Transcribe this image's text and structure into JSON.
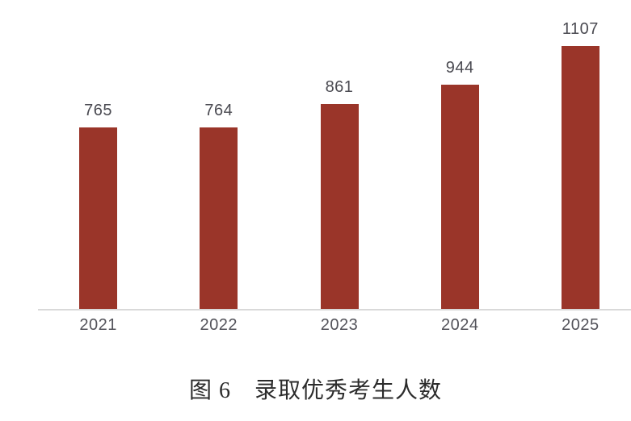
{
  "chart_data": {
    "type": "bar",
    "title": "图 6　录取优秀考生人数",
    "categories": [
      "2021",
      "2022",
      "2023",
      "2024",
      "2025"
    ],
    "values": [
      765,
      764,
      861,
      944,
      1107
    ],
    "xlabel": "",
    "ylabel": "",
    "ylim": [
      0,
      1200
    ],
    "data_labels": true,
    "grid": false,
    "legend": false,
    "axis": "x-axis baseline only, no ticks, no y-axis"
  },
  "colors": {
    "background": "#FFFFFF",
    "bar": "#9A3529",
    "axis_line": "#D9D9D9",
    "value_label": "#4B4B52",
    "tick_label": "#53535A",
    "title": "#2B2B2B"
  }
}
